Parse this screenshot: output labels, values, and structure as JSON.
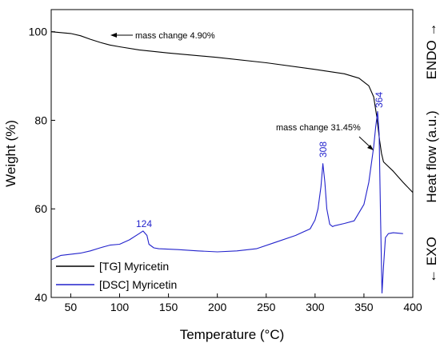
{
  "chart_data": {
    "type": "line",
    "xlabel": "Temperature (°C)",
    "ylabel": "Weight (%)",
    "y2label_top": "ENDO →",
    "y2label_mid": "Heat flow (a.u.)",
    "y2label_bottom": "← EXO",
    "xlim": [
      30,
      400
    ],
    "ylim": [
      40,
      105
    ],
    "xticks": [
      50,
      100,
      150,
      200,
      250,
      300,
      350,
      400
    ],
    "yticks": [
      40,
      60,
      80,
      100
    ],
    "legend_position": "bottom-left",
    "series": [
      {
        "name": "[TG] Myricetin",
        "color": "#000000",
        "axis": "left",
        "x": [
          30,
          50,
          60,
          70,
          80,
          90,
          100,
          120,
          150,
          200,
          250,
          300,
          330,
          345,
          355,
          360,
          363,
          366,
          368,
          370,
          380,
          390,
          400
        ],
        "y": [
          100,
          99.6,
          99.1,
          98.3,
          97.6,
          97.0,
          96.6,
          95.9,
          95.2,
          94.2,
          93.0,
          91.5,
          90.5,
          89.5,
          87.8,
          85.3,
          81.0,
          75.5,
          72.5,
          70.6,
          68.5,
          66.0,
          63.7
        ]
      },
      {
        "name": "[DSC] Myricetin",
        "color": "#2222cc",
        "axis": "right",
        "x": [
          30,
          40,
          60,
          70,
          80,
          90,
          100,
          110,
          120,
          124,
          128,
          130,
          135,
          140,
          160,
          180,
          200,
          220,
          240,
          260,
          280,
          295,
          300,
          303,
          306,
          308,
          310,
          312,
          315,
          318,
          320,
          330,
          340,
          350,
          355,
          360,
          362,
          364,
          365.5,
          367,
          368.5,
          370,
          372,
          375,
          380,
          390
        ],
        "y": [
          48.5,
          49.5,
          50.0,
          50.5,
          51.2,
          51.8,
          52.0,
          53.0,
          54.4,
          55.0,
          54.0,
          52.0,
          51.2,
          51.0,
          50.8,
          50.5,
          50.3,
          50.5,
          51.0,
          52.5,
          54.0,
          55.5,
          57.5,
          60.0,
          65.0,
          70.2,
          66.0,
          60.0,
          56.5,
          56.0,
          56.2,
          56.7,
          57.3,
          61.0,
          66.0,
          74.0,
          78.5,
          82.0,
          77.0,
          58.0,
          41.0,
          47.0,
          53.5,
          54.4,
          54.6,
          54.4
        ]
      }
    ],
    "annotations": [
      {
        "text": "mass change 4.90%",
        "x": 95,
        "y": 97.2
      },
      {
        "text": "mass change 31.45%",
        "x": 363,
        "y": 76.2
      }
    ],
    "peak_labels": [
      {
        "text": "124",
        "x": 124,
        "y": 55.0
      },
      {
        "text": "308",
        "x": 308,
        "y": 70.2
      },
      {
        "text": "364",
        "x": 364,
        "y": 82.0
      }
    ]
  }
}
